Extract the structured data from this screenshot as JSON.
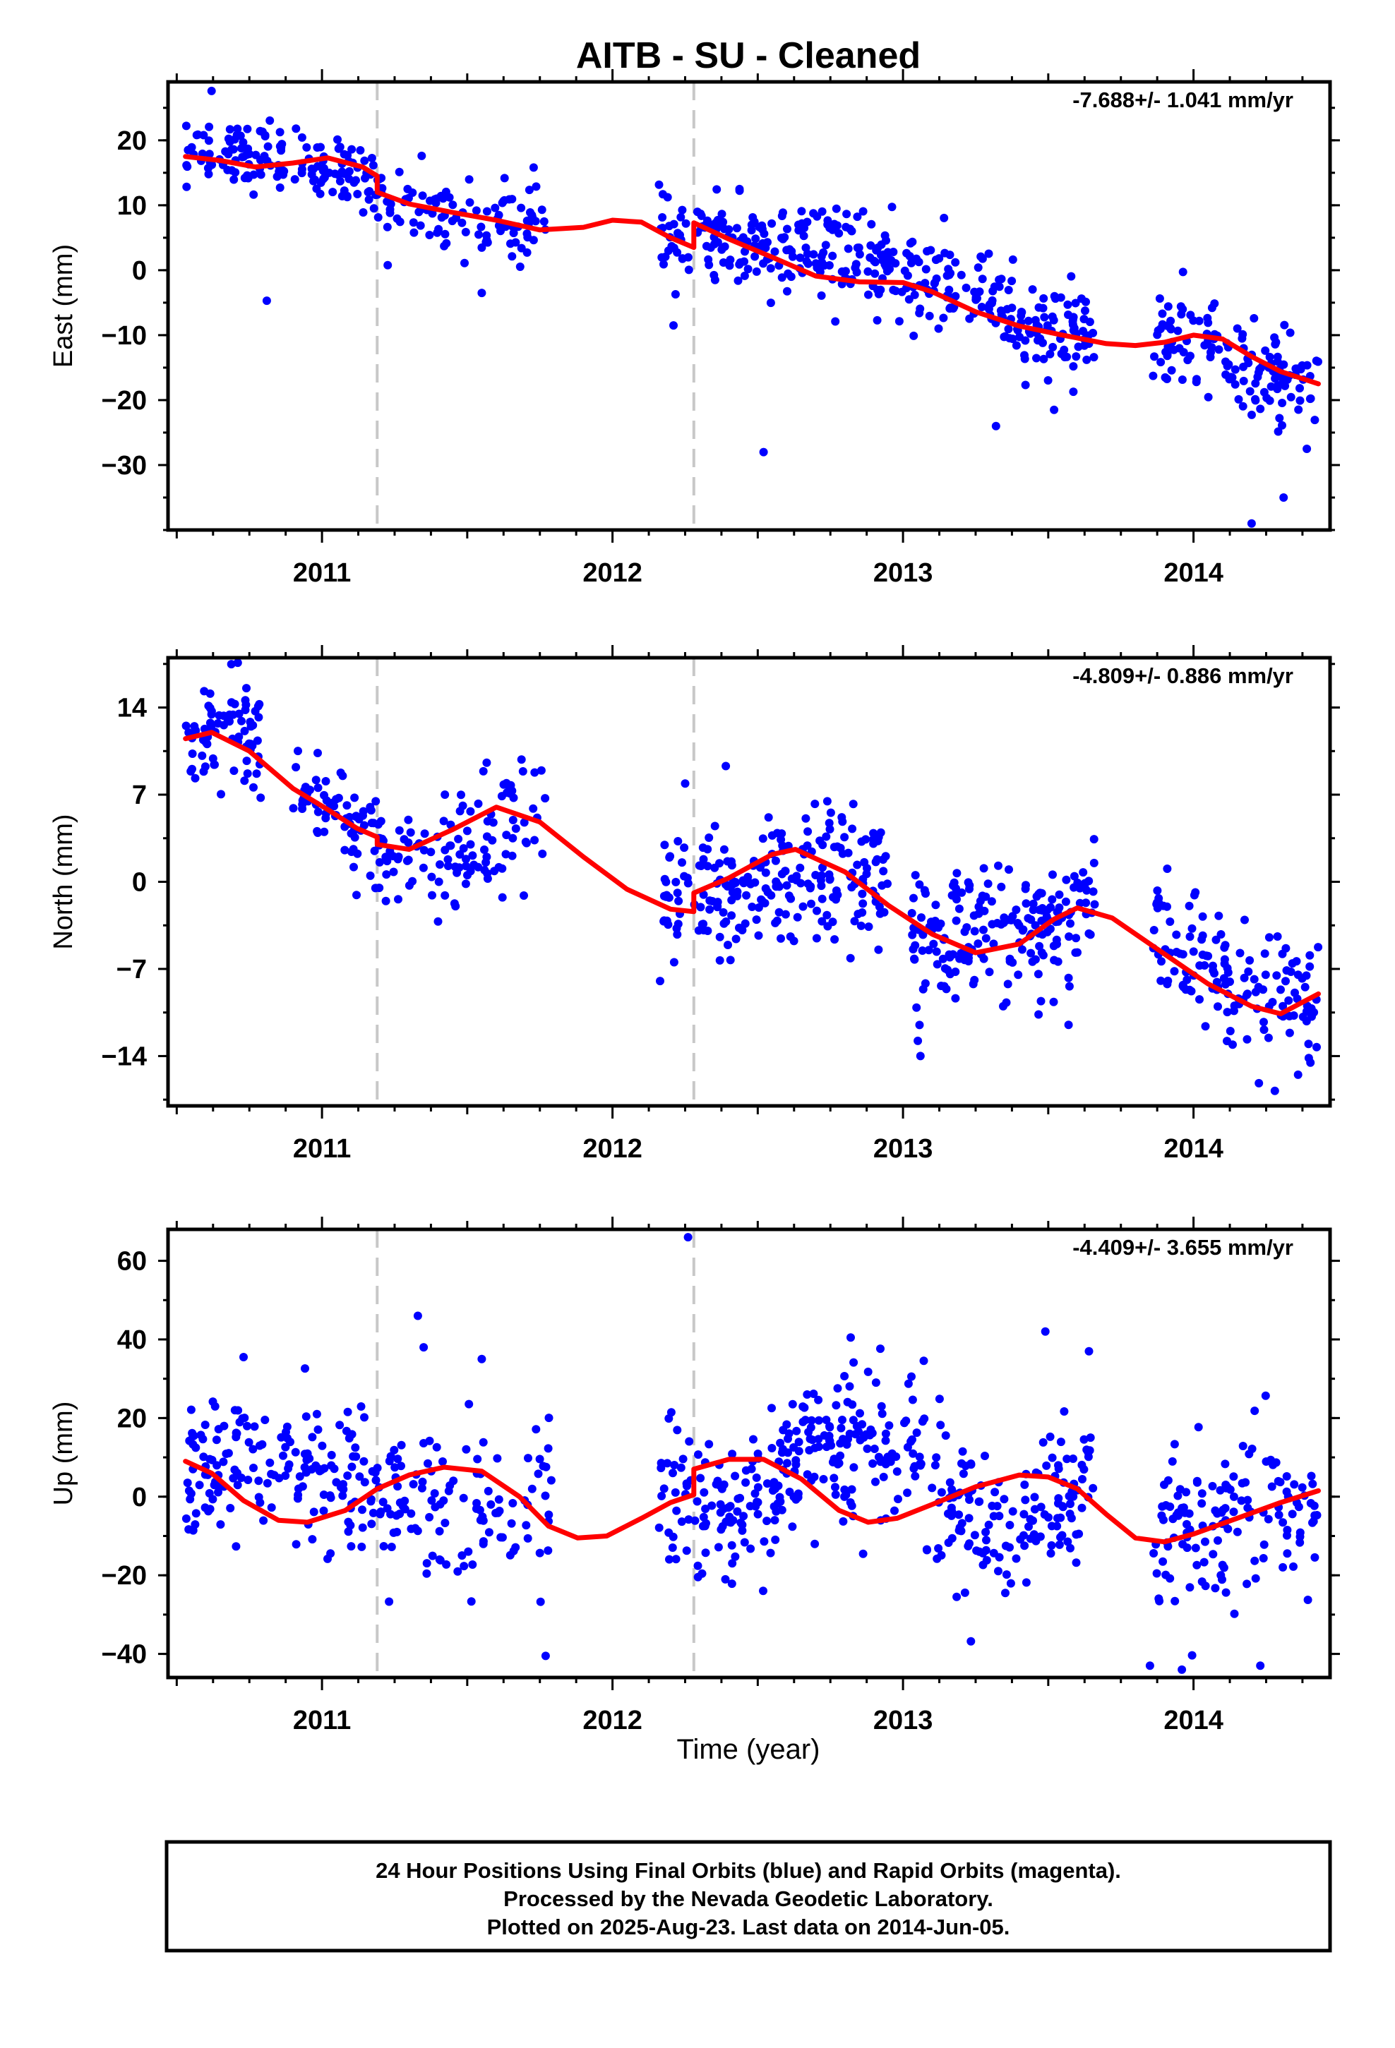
{
  "title": "AITB  - SU - Cleaned",
  "x_axis_label": "Time (year)",
  "x_ticks": [
    "2011",
    "2012",
    "2013",
    "2014"
  ],
  "footer": {
    "line1": "24 Hour Positions Using Final Orbits (blue) and Rapid Orbits (magenta).",
    "line2": "Processed by the Nevada Geodetic Laboratory.",
    "line3": "Plotted on 2025-Aug-23. Last data on 2014-Jun-05."
  },
  "colors": {
    "points": "#0000ff",
    "model": "#ff0000",
    "breaks": "#c8c8c8",
    "frame": "#000000"
  },
  "chart_data": [
    {
      "type": "scatter",
      "ylabel": "East (mm)",
      "rate_label": "-7.688+/- 1.041 mm/yr",
      "xlim": [
        2010.47,
        2014.47
      ],
      "ylim": [
        -40,
        29
      ],
      "y_ticks": [
        20,
        10,
        0,
        -10,
        -20,
        -30
      ],
      "y_tick_labels": [
        "20",
        "10",
        "0",
        "−10",
        "−20",
        "−30"
      ],
      "breaks": [
        2011.19,
        2012.28
      ],
      "model": {
        "name": "model fit",
        "points": [
          [
            2010.53,
            17.5
          ],
          [
            2010.65,
            16.9
          ],
          [
            2010.77,
            15.9
          ],
          [
            2010.9,
            16.5
          ],
          [
            2011.02,
            17.3
          ],
          [
            2011.14,
            15.9
          ],
          [
            2011.19,
            14.5
          ],
          [
            2011.19,
            12.0
          ],
          [
            2011.3,
            10.2
          ],
          [
            2011.45,
            8.9
          ],
          [
            2011.6,
            7.7
          ],
          [
            2011.75,
            6.2
          ],
          [
            2011.9,
            6.6
          ],
          [
            2012.0,
            7.7
          ],
          [
            2012.1,
            7.4
          ],
          [
            2012.2,
            5.0
          ],
          [
            2012.28,
            3.5
          ],
          [
            2012.28,
            7.3
          ],
          [
            2012.4,
            4.8
          ],
          [
            2012.55,
            2.0
          ],
          [
            2012.7,
            -0.9
          ],
          [
            2012.85,
            -1.8
          ],
          [
            2013.0,
            -1.9
          ],
          [
            2013.1,
            -3.3
          ],
          [
            2013.25,
            -6.4
          ],
          [
            2013.4,
            -8.6
          ],
          [
            2013.55,
            -10.0
          ],
          [
            2013.7,
            -11.3
          ],
          [
            2013.8,
            -11.6
          ],
          [
            2013.9,
            -11.1
          ],
          [
            2014.0,
            -10.0
          ],
          [
            2014.1,
            -10.6
          ],
          [
            2014.2,
            -13.3
          ],
          [
            2014.3,
            -15.6
          ],
          [
            2014.43,
            -17.5
          ]
        ]
      },
      "points_name": "Final Orbits",
      "segments": [
        {
          "x": [
            2010.53,
            2011.21
          ],
          "trend": [
            17.5,
            14.5
          ],
          "amp": 1.4,
          "noise": 2.5,
          "n": 150
        },
        {
          "x": [
            2011.22,
            2011.77
          ],
          "trend": [
            12.0,
            6.0
          ],
          "amp": 1.0,
          "noise": 3.0,
          "n": 95
        },
        {
          "x": [
            2012.16,
            2012.27
          ],
          "trend": [
            5.0,
            3.0
          ],
          "amp": 0.0,
          "noise": 3.0,
          "n": 28
        },
        {
          "x": [
            2012.29,
            2013.08
          ],
          "trend": [
            6.5,
            -2.0
          ],
          "amp": 1.0,
          "noise": 3.5,
          "n": 210
        },
        {
          "x": [
            2013.08,
            2013.66
          ],
          "trend": [
            -1.5,
            -10.5
          ],
          "amp": 1.0,
          "noise": 3.5,
          "n": 150
        },
        {
          "x": [
            2013.86,
            2014.43
          ],
          "trend": [
            -10.5,
            -17.5
          ],
          "amp": 0.6,
          "noise": 3.5,
          "n": 140
        }
      ],
      "outliers": [
        [
          2010.81,
          -4.7
        ],
        [
          2011.55,
          -3.5
        ],
        [
          2012.21,
          -8.5
        ],
        [
          2012.52,
          -28.0
        ],
        [
          2013.32,
          -24.0
        ],
        [
          2013.52,
          -21.5
        ],
        [
          2014.31,
          -35.0
        ],
        [
          2014.39,
          -27.5
        ],
        [
          2014.2,
          -39.0
        ],
        [
          2010.62,
          27.6
        ]
      ]
    },
    {
      "type": "scatter",
      "ylabel": "North (mm)",
      "rate_label": "-4.809+/- 0.886 mm/yr",
      "xlim": [
        2010.47,
        2014.47
      ],
      "ylim": [
        -18,
        18
      ],
      "y_ticks": [
        14,
        7,
        0,
        -7,
        -14
      ],
      "y_tick_labels": [
        "14",
        "7",
        "0",
        "−7",
        "−14"
      ],
      "breaks": [
        2011.19,
        2012.28
      ],
      "model": {
        "name": "model fit",
        "points": [
          [
            2010.53,
            11.5
          ],
          [
            2010.62,
            12.0
          ],
          [
            2010.75,
            10.5
          ],
          [
            2010.9,
            7.5
          ],
          [
            2011.02,
            5.8
          ],
          [
            2011.12,
            4.3
          ],
          [
            2011.19,
            3.6
          ],
          [
            2011.19,
            3.0
          ],
          [
            2011.3,
            2.6
          ],
          [
            2011.45,
            4.2
          ],
          [
            2011.6,
            6.0
          ],
          [
            2011.75,
            4.8
          ],
          [
            2011.9,
            2.0
          ],
          [
            2012.05,
            -0.6
          ],
          [
            2012.2,
            -2.2
          ],
          [
            2012.28,
            -2.4
          ],
          [
            2012.28,
            -0.9
          ],
          [
            2012.4,
            0.3
          ],
          [
            2012.55,
            2.2
          ],
          [
            2012.63,
            2.6
          ],
          [
            2012.8,
            0.8
          ],
          [
            2012.95,
            -1.9
          ],
          [
            2013.1,
            -4.2
          ],
          [
            2013.25,
            -5.7
          ],
          [
            2013.4,
            -5.0
          ],
          [
            2013.52,
            -3.0
          ],
          [
            2013.6,
            -2.1
          ],
          [
            2013.72,
            -2.9
          ],
          [
            2013.9,
            -5.8
          ],
          [
            2014.05,
            -8.2
          ],
          [
            2014.2,
            -10.0
          ],
          [
            2014.3,
            -10.6
          ],
          [
            2014.43,
            -9.0
          ]
        ]
      },
      "points_name": "Final Orbits",
      "segments": [
        {
          "x": [
            2010.53,
            2010.79
          ],
          "trend": [
            11.8,
            11.0
          ],
          "amp": 0.6,
          "noise": 2.3,
          "n": 75
        },
        {
          "x": [
            2010.9,
            2011.21
          ],
          "trend": [
            7.5,
            3.5
          ],
          "amp": 0.3,
          "noise": 2.0,
          "n": 75
        },
        {
          "x": [
            2011.21,
            2011.77
          ],
          "trend": [
            2.0,
            5.0
          ],
          "amp": 1.5,
          "noise": 2.5,
          "n": 110
        },
        {
          "x": [
            2012.16,
            2012.27
          ],
          "trend": [
            -2.5,
            -2.5
          ],
          "amp": 0.0,
          "noise": 3.0,
          "n": 28
        },
        {
          "x": [
            2012.28,
            2012.95
          ],
          "trend": [
            0.5,
            -1.0
          ],
          "amp": 1.4,
          "noise": 2.6,
          "n": 200
        },
        {
          "x": [
            2013.03,
            2013.66
          ],
          "trend": [
            -4.5,
            -2.5
          ],
          "amp": 1.0,
          "noise": 2.6,
          "n": 200
        },
        {
          "x": [
            2013.86,
            2014.43
          ],
          "trend": [
            -5.0,
            -10.0
          ],
          "amp": 0.5,
          "noise": 2.6,
          "n": 140
        }
      ],
      "outliers": [
        [
          2010.78,
          18.3
        ],
        [
          2010.71,
          17.6
        ],
        [
          2012.25,
          7.9
        ],
        [
          2012.39,
          9.3
        ],
        [
          2013.06,
          -14.0
        ],
        [
          2013.57,
          -11.5
        ],
        [
          2014.28,
          -16.8
        ],
        [
          2014.36,
          -15.5
        ]
      ]
    },
    {
      "type": "scatter",
      "ylabel": "Up (mm)",
      "rate_label": "-4.409+/- 3.655 mm/yr",
      "xlim": [
        2010.47,
        2014.47
      ],
      "ylim": [
        -46,
        68
      ],
      "y_ticks": [
        60,
        40,
        20,
        0,
        -20,
        -40
      ],
      "y_tick_labels": [
        "60",
        "40",
        "20",
        "0",
        "−20",
        "−40"
      ],
      "breaks": [
        2011.19,
        2012.28
      ],
      "model": {
        "name": "model fit",
        "points": [
          [
            2010.53,
            9.0
          ],
          [
            2010.62,
            6.0
          ],
          [
            2010.73,
            -1.0
          ],
          [
            2010.85,
            -6.0
          ],
          [
            2010.95,
            -6.5
          ],
          [
            2011.08,
            -3.5
          ],
          [
            2011.19,
            2.0
          ],
          [
            2011.3,
            5.5
          ],
          [
            2011.42,
            7.5
          ],
          [
            2011.55,
            6.5
          ],
          [
            2011.68,
            0.0
          ],
          [
            2011.78,
            -7.5
          ],
          [
            2011.88,
            -10.5
          ],
          [
            2011.98,
            -10.0
          ],
          [
            2012.1,
            -5.5
          ],
          [
            2012.2,
            -1.5
          ],
          [
            2012.28,
            0.5
          ],
          [
            2012.28,
            7.0
          ],
          [
            2012.4,
            9.5
          ],
          [
            2012.52,
            9.5
          ],
          [
            2012.65,
            4.5
          ],
          [
            2012.78,
            -3.5
          ],
          [
            2012.88,
            -6.5
          ],
          [
            2012.98,
            -5.5
          ],
          [
            2013.1,
            -2.0
          ],
          [
            2013.25,
            2.5
          ],
          [
            2013.4,
            5.5
          ],
          [
            2013.5,
            5.0
          ],
          [
            2013.6,
            2.0
          ],
          [
            2013.7,
            -4.5
          ],
          [
            2013.8,
            -10.5
          ],
          [
            2013.9,
            -11.5
          ],
          [
            2014.0,
            -9.5
          ],
          [
            2014.15,
            -5.5
          ],
          [
            2014.3,
            -1.5
          ],
          [
            2014.43,
            1.5
          ]
        ]
      },
      "points_name": "Final Orbits",
      "segments": [
        {
          "x": [
            2010.53,
            2011.21
          ],
          "trend": [
            8.0,
            0.0
          ],
          "amp": 6.0,
          "noise": 9.0,
          "n": 170
        },
        {
          "x": [
            2011.21,
            2011.79
          ],
          "trend": [
            4.0,
            -6.0
          ],
          "amp": 5.0,
          "noise": 11.0,
          "n": 110
        },
        {
          "x": [
            2012.16,
            2012.27
          ],
          "trend": [
            0.0,
            0.0
          ],
          "amp": 0.0,
          "noise": 11.0,
          "n": 28
        },
        {
          "x": [
            2012.28,
            2013.66
          ],
          "trend": [
            7.0,
            0.0
          ],
          "amp": 10.0,
          "noise": 9.5,
          "n": 390
        },
        {
          "x": [
            2013.86,
            2014.43
          ],
          "trend": [
            -10.0,
            2.0
          ],
          "amp": 1.0,
          "noise": 10.0,
          "n": 140
        }
      ],
      "outliers": [
        [
          2012.26,
          66.0
        ],
        [
          2011.33,
          46.0
        ],
        [
          2011.35,
          38.0
        ],
        [
          2013.49,
          42.0
        ],
        [
          2013.64,
          37.0
        ],
        [
          2012.82,
          40.5
        ],
        [
          2011.77,
          -40.5
        ],
        [
          2013.85,
          -43.0
        ],
        [
          2013.96,
          -44.0
        ],
        [
          2014.23,
          -43.0
        ],
        [
          2010.73,
          35.5
        ],
        [
          2011.55,
          35.0
        ]
      ]
    }
  ]
}
